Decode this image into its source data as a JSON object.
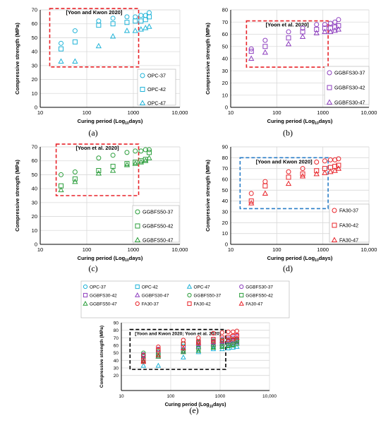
{
  "chart_data": [
    {
      "id": "a",
      "type": "scatter",
      "caption": "(a)",
      "annotation": "[Yoon and Kwon 2020]",
      "box_color": "#e8242a",
      "xlabel": "Curing period (Log10days)",
      "ylabel": "Compressive strength (MPa)",
      "xscale": "log",
      "xlim": [
        10,
        10000
      ],
      "ylim": [
        0,
        70
      ],
      "yticks": [
        0,
        10,
        20,
        30,
        40,
        50,
        60,
        70
      ],
      "xticks": [
        10,
        100,
        1000,
        10000
      ],
      "xtick_labels": [
        "10",
        "100",
        "1000",
        "10,000"
      ],
      "grid": true,
      "legend_position": "bottom-right",
      "box": {
        "x": [
          16,
          1300
        ],
        "y": [
          29,
          71
        ]
      },
      "series": [
        {
          "name": "OPC-37",
          "marker": "circle",
          "color": "#1fb3d8",
          "x": [
            28,
            56,
            180,
            365,
            730,
            1100,
            1460,
            1825,
            2190
          ],
          "y": [
            46,
            55,
            62,
            64,
            65,
            65,
            66,
            66,
            68
          ]
        },
        {
          "name": "OPC-42",
          "marker": "square",
          "color": "#1fb3d8",
          "x": [
            28,
            56,
            180,
            365,
            730,
            1100,
            1460,
            1825,
            2190
          ],
          "y": [
            42,
            47,
            59,
            60,
            61,
            62,
            62,
            63,
            65
          ]
        },
        {
          "name": "OPC-47",
          "marker": "triangle",
          "color": "#1fb3d8",
          "x": [
            28,
            56,
            180,
            365,
            730,
            1100,
            1460,
            1825,
            2190
          ],
          "y": [
            33,
            33,
            44,
            51,
            55,
            55,
            56,
            57,
            58
          ]
        }
      ]
    },
    {
      "id": "b",
      "type": "scatter",
      "caption": "(b)",
      "annotation": "[Yoon et al. 2020]",
      "box_color": "#e8242a",
      "xlabel": "Curing period (Log10days)",
      "ylabel": "Compressive strength (MPa)",
      "xscale": "log",
      "xlim": [
        10,
        10000
      ],
      "ylim": [
        0,
        80
      ],
      "yticks": [
        0,
        10,
        20,
        30,
        40,
        50,
        60,
        70,
        80
      ],
      "xticks": [
        10,
        100,
        1000,
        10000
      ],
      "xtick_labels": [
        "10",
        "100",
        "1000",
        "10,000"
      ],
      "grid": true,
      "legend_position": "bottom-right",
      "box": {
        "x": [
          22,
          1300
        ],
        "y": [
          33,
          71
        ]
      },
      "series": [
        {
          "name": "GGBFS30-37",
          "marker": "circle",
          "color": "#8e3fbf",
          "x": [
            28,
            56,
            180,
            365,
            730,
            1100,
            1460,
            1825,
            2190
          ],
          "y": [
            48,
            55,
            62,
            65,
            68,
            68,
            69,
            70,
            72
          ]
        },
        {
          "name": "GGBFS30-42",
          "marker": "square",
          "color": "#8e3fbf",
          "x": [
            28,
            56,
            180,
            365,
            730,
            1100,
            1460,
            1825,
            2190
          ],
          "y": [
            46,
            50,
            57,
            62,
            64,
            65,
            65,
            66,
            67
          ]
        },
        {
          "name": "GGBFS30-47",
          "marker": "triangle",
          "color": "#8e3fbf",
          "x": [
            28,
            56,
            180,
            365,
            730,
            1100,
            1460,
            1825,
            2190
          ],
          "y": [
            40,
            45,
            52,
            58,
            61,
            62,
            62,
            63,
            64
          ]
        }
      ]
    },
    {
      "id": "c",
      "type": "scatter",
      "caption": "(c)",
      "annotation": "[Yoon et al. 2020]",
      "box_color": "#e8242a",
      "xlabel": "Curing period (Log10days)",
      "ylabel": "Compressive strength (MPa)",
      "xscale": "log",
      "xlim": [
        10,
        10000
      ],
      "ylim": [
        0,
        70
      ],
      "yticks": [
        0,
        10,
        20,
        30,
        40,
        50,
        60,
        70
      ],
      "xticks": [
        10,
        100,
        1000,
        10000
      ],
      "xtick_labels": [
        "10",
        "100",
        "1000",
        "10,000"
      ],
      "grid": true,
      "legend_position": "bottom-right",
      "box": {
        "x": [
          22,
          1300
        ],
        "y": [
          35,
          72
        ]
      },
      "series": [
        {
          "name": "GGBFS50-37",
          "marker": "circle",
          "color": "#2a9d3a",
          "x": [
            28,
            56,
            180,
            365,
            730,
            1100,
            1460,
            1825,
            2190
          ],
          "y": [
            50,
            52,
            62,
            64,
            66,
            67,
            67,
            68,
            68
          ]
        },
        {
          "name": "GGBFS50-42",
          "marker": "square",
          "color": "#2a9d3a",
          "x": [
            28,
            56,
            180,
            365,
            730,
            1100,
            1460,
            1825,
            2190
          ],
          "y": [
            42,
            47,
            53,
            56,
            58,
            59,
            60,
            61,
            66
          ]
        },
        {
          "name": "GGBFS50-47",
          "marker": "triangle",
          "color": "#2a9d3a",
          "x": [
            28,
            56,
            180,
            365,
            730,
            1100,
            1460,
            1825,
            2190
          ],
          "y": [
            39,
            45,
            51,
            53,
            57,
            58,
            59,
            60,
            62
          ]
        }
      ]
    },
    {
      "id": "d",
      "type": "scatter",
      "caption": "(d)",
      "annotation": "[Yoon and Kwon 2020]",
      "box_color": "#2a7ec8",
      "xlabel": "Curing period (Log10days)",
      "ylabel": "Compressive strength (MPa)",
      "xscale": "log",
      "xlim": [
        10,
        10000
      ],
      "ylim": [
        0,
        90
      ],
      "yticks": [
        0,
        10,
        20,
        30,
        40,
        50,
        60,
        70,
        80,
        90
      ],
      "xticks": [
        10,
        100,
        1000,
        10000
      ],
      "xtick_labels": [
        "10",
        "100",
        "1000",
        "10,000"
      ],
      "grid": true,
      "legend_position": "bottom-right",
      "box": {
        "x": [
          16,
          1300
        ],
        "y": [
          33,
          80
        ]
      },
      "series": [
        {
          "name": "FA30-37",
          "marker": "circle",
          "color": "#e8242a",
          "x": [
            28,
            56,
            180,
            365,
            730,
            1100,
            1460,
            1825,
            2190
          ],
          "y": [
            47,
            58,
            67,
            70,
            76,
            77,
            78,
            78,
            79
          ]
        },
        {
          "name": "FA30-42",
          "marker": "square",
          "color": "#e8242a",
          "x": [
            28,
            56,
            180,
            365,
            730,
            1100,
            1460,
            1825,
            2190
          ],
          "y": [
            40,
            54,
            62,
            65,
            68,
            70,
            71,
            72,
            73
          ]
        },
        {
          "name": "FA30-47",
          "marker": "triangle",
          "color": "#e8242a",
          "x": [
            28,
            56,
            180,
            365,
            730,
            1100,
            1460,
            1825,
            2190
          ],
          "y": [
            38,
            47,
            56,
            63,
            65,
            66,
            67,
            68,
            70
          ]
        }
      ]
    },
    {
      "id": "e",
      "type": "scatter",
      "caption": "(e)",
      "annotation": "[Yoon and Kwon 2020; Yoon et al. 2020]",
      "box_color": "#000000",
      "xlabel": "Curing period (Log10days)",
      "ylabel": "Compressive strength (MPa)",
      "xscale": "log",
      "xlim": [
        10,
        10000
      ],
      "ylim": [
        0,
        90
      ],
      "yticks": [
        20,
        30,
        40,
        50,
        60,
        70,
        80,
        90
      ],
      "xticks": [
        10,
        100,
        1000,
        10000
      ],
      "xtick_labels": [
        "10",
        "100",
        "1000",
        "10,000"
      ],
      "grid": true,
      "legend_position": "top",
      "box": {
        "x": [
          15,
          1300
        ],
        "y": [
          28,
          81
        ]
      },
      "series_from": [
        "a",
        "b",
        "c",
        "d"
      ]
    }
  ]
}
